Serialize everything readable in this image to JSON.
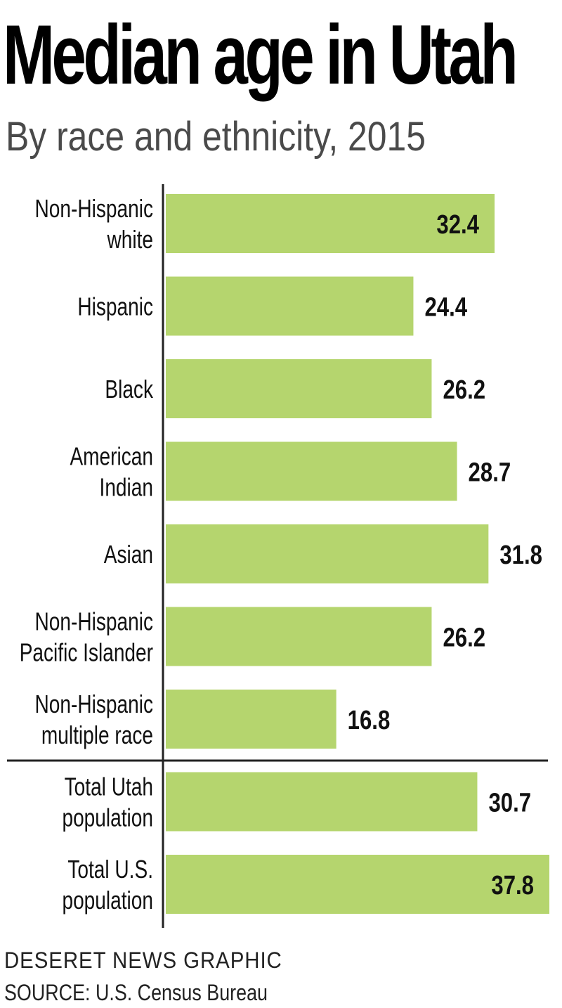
{
  "header": {
    "title": "Median age in Utah",
    "subtitle": "By race and ethnicity, 2015"
  },
  "footer": {
    "credit": "DESERET NEWS GRAPHIC",
    "source": "SOURCE: U.S. Census Bureau"
  },
  "colors": {
    "bar": "#b5d56e",
    "axis": "#222222"
  },
  "chart_data": {
    "type": "bar",
    "orientation": "horizontal",
    "title": "Median age in Utah",
    "subtitle": "By race and ethnicity, 2015",
    "categories": [
      [
        "Non-Hispanic",
        "white"
      ],
      [
        "Hispanic"
      ],
      [
        "Black"
      ],
      [
        "American",
        "Indian"
      ],
      [
        "Asian"
      ],
      [
        "Non-Hispanic",
        "Pacific Islander"
      ],
      [
        "Non-Hispanic",
        "multiple race"
      ],
      [
        "Total Utah",
        "population"
      ],
      [
        "Total U.S.",
        "population"
      ]
    ],
    "values": [
      32.4,
      24.4,
      26.2,
      28.7,
      31.8,
      26.2,
      16.8,
      30.7,
      37.8
    ],
    "value_labels": [
      "32.4",
      "24.4",
      "26.2",
      "28.7",
      "31.8",
      "26.2",
      "16.8",
      "30.7",
      "37.8"
    ],
    "xlim": [
      0,
      37.8
    ],
    "grid": false,
    "legend": "none",
    "separator_after_index": 6
  }
}
